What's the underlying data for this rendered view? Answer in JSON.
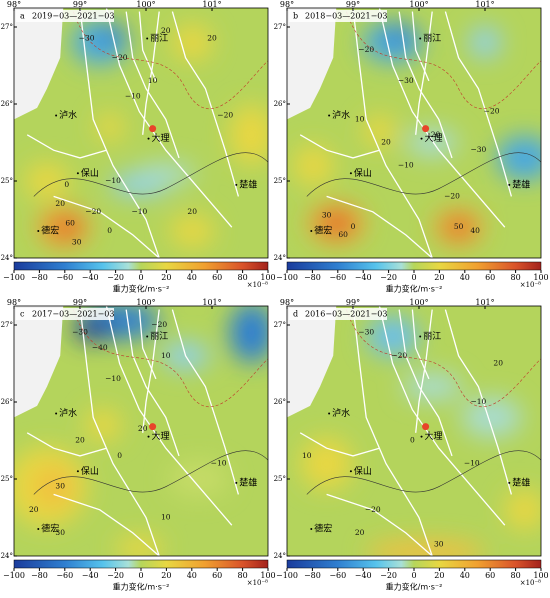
{
  "panels": [
    {
      "letter": "a",
      "period": "2019−03—2021−03",
      "contour_labels": [
        "−30",
        "−20",
        "20",
        "20",
        "10",
        "−10",
        "−20",
        "0",
        "20",
        "−10",
        "−10",
        "0",
        "30",
        "60",
        "−20",
        "20"
      ]
    },
    {
      "letter": "b",
      "period": "2018−03—2021−03",
      "contour_labels": [
        "−20",
        "−30",
        "20",
        "−20",
        "10",
        "20",
        "−30",
        "−20",
        "0",
        "30",
        "60",
        "50",
        "40",
        "−10"
      ]
    },
    {
      "letter": "c",
      "period": "2017−03—2021−03",
      "contour_labels": [
        "−30",
        "−40",
        "−20",
        "10",
        "−10",
        "20",
        "0",
        "30",
        "20",
        "30",
        "10",
        "−10",
        "20"
      ]
    },
    {
      "letter": "d",
      "period": "2016−03—2021−03",
      "contour_labels": [
        "−30",
        "−20",
        "−10",
        "20",
        "0",
        "−20",
        "20",
        "30",
        "−10",
        "10"
      ]
    }
  ],
  "cities": [
    "丽江",
    "泸水",
    "大理",
    "保山",
    "德宏",
    "楚雄"
  ],
  "lon_ticks": [
    {
      "value": 98,
      "label": "98°"
    },
    {
      "value": 99,
      "label": "99°"
    },
    {
      "value": 100,
      "label": "100°"
    },
    {
      "value": 101,
      "label": "101°"
    }
  ],
  "lat_ticks": [
    {
      "value": 27,
      "label": "27°"
    },
    {
      "value": 26,
      "label": "26°"
    },
    {
      "value": 25,
      "label": "25°"
    },
    {
      "value": 24,
      "label": "24°"
    }
  ],
  "colorbar": {
    "range": [
      -100,
      100
    ],
    "ticks": [
      {
        "value": -100,
        "label": "−100"
      },
      {
        "value": -80,
        "label": "−80"
      },
      {
        "value": -60,
        "label": "−60"
      },
      {
        "value": -40,
        "label": "−40"
      },
      {
        "value": -20,
        "label": "−20"
      },
      0,
      20,
      40,
      60,
      80,
      100
    ],
    "exponent": "×10⁻⁸",
    "label": "重力变化/m·s⁻²"
  }
}
